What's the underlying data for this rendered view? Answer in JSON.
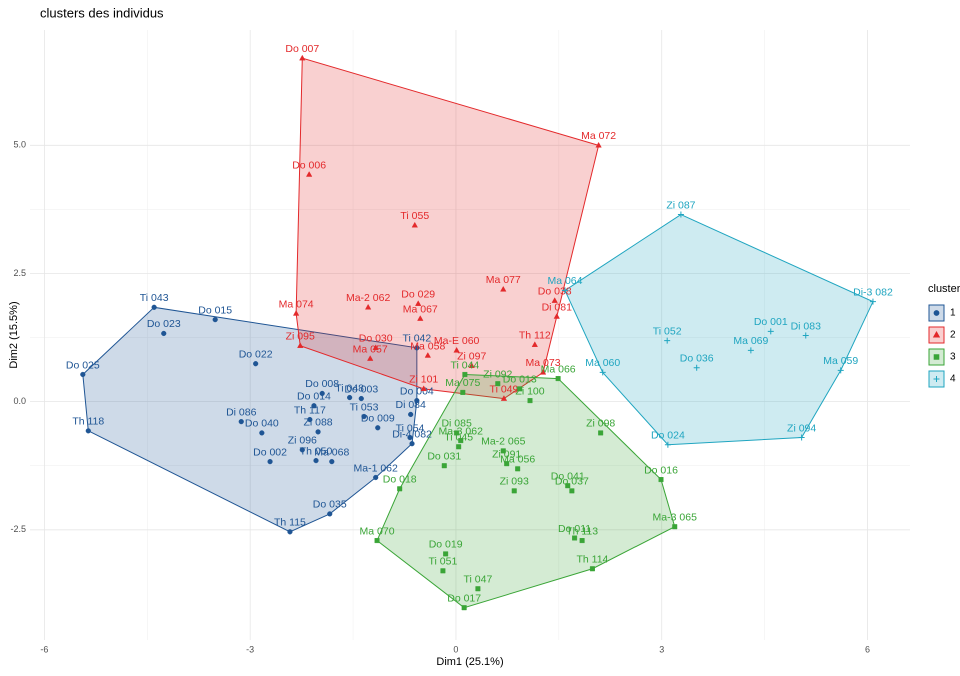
{
  "chart_data": {
    "type": "scatter",
    "title": "clusters des individus",
    "x_label": "Dim1 (25.1%)",
    "y_label": "Dim2 (15.5%)",
    "legend_title": "cluster",
    "xlim": [
      -6.21,
      6.62
    ],
    "ylim": [
      -4.65,
      7.25
    ],
    "xticks": [
      -6,
      -3,
      0,
      3,
      6
    ],
    "yticks": [
      -2.5,
      {
        "value": 0,
        "label": "0.0"
      },
      2.5,
      {
        "value": 5,
        "label": "5.0"
      }
    ],
    "grid": true,
    "legend": "right",
    "series": [
      {
        "name": "1",
        "color": "#1f5594",
        "marker": "circle",
        "labels": [
          "Ti 043",
          "Do 015",
          "Do 023",
          "Do 022",
          "Do 025",
          "Th 118",
          "Di 086",
          "Do 040",
          "Do 002",
          "Zi 096",
          "Th 050",
          "Th 117",
          "Zi 088",
          "Do 008",
          "Do 014",
          "Ti 048",
          "Do 003",
          "Ti 053",
          "Do 009",
          "Ma 068",
          "Di 084",
          "Di-4 082",
          "Ma-1 062",
          "Do 035",
          "Th 115",
          "Ti 042",
          "Do 004",
          "Ti 054"
        ],
        "x": [
          -4.4,
          -3.51,
          -4.26,
          -2.92,
          -5.44,
          -5.36,
          -3.13,
          -2.83,
          -2.71,
          -2.24,
          -2.04,
          -2.13,
          -2.01,
          -1.95,
          -2.07,
          -1.55,
          -1.38,
          -1.34,
          -1.14,
          -1.81,
          -0.66,
          -0.64,
          -1.17,
          -1.84,
          -2.42,
          -0.57,
          -0.57,
          -0.67
        ],
        "y": [
          1.84,
          1.6,
          1.33,
          0.74,
          0.53,
          -0.57,
          -0.39,
          -0.61,
          -1.17,
          -0.94,
          -1.15,
          -0.35,
          -0.59,
          0.16,
          -0.08,
          0.08,
          0.06,
          -0.29,
          -0.51,
          -1.17,
          -0.25,
          -0.82,
          -1.48,
          -2.19,
          -2.54,
          1.05,
          0.02,
          -0.7
        ]
      },
      {
        "name": "2",
        "color": "#e3292b",
        "marker": "triangle",
        "labels": [
          "Do 007",
          "Do 006",
          "Ma 072",
          "Ti 055",
          "Ma 077",
          "Do 029",
          "Ma 074",
          "Ma-2 062",
          "Ma 067",
          "Do 038",
          "Di 081",
          "Th 112",
          "Ma-E 060",
          "Zi 095",
          "Do 030",
          "Ma 057",
          "Zi 101",
          "Ma 058",
          "Zi 097",
          "Ma 073",
          "Ti 049"
        ],
        "x": [
          -2.24,
          -2.14,
          2.08,
          -0.6,
          0.69,
          -0.55,
          -2.33,
          -1.28,
          -0.52,
          1.44,
          1.47,
          1.15,
          0.01,
          -2.27,
          -1.17,
          -1.25,
          -0.47,
          -0.41,
          0.23,
          1.27,
          0.7
        ],
        "y": [
          6.7,
          4.43,
          5.0,
          3.44,
          2.19,
          1.91,
          1.72,
          1.84,
          1.62,
          1.97,
          1.66,
          1.11,
          1.0,
          1.09,
          1.05,
          0.84,
          0.25,
          0.9,
          0.7,
          0.57,
          0.06
        ]
      },
      {
        "name": "3",
        "color": "#3aa537",
        "marker": "square",
        "labels": [
          "Ti 044",
          "Zi 092",
          "Do 013",
          "Ma 066",
          "Ma 075",
          "Zi 100",
          "Zi 098",
          "Di 085",
          "Ma-3 062",
          "Ti 045",
          "Ma-2 065",
          "Zi 091",
          "Ma 056",
          "Do 041",
          "Do 037",
          "Do 031",
          "Zi 093",
          "Do 018",
          "Do 011",
          "Do 016",
          "Ma-3 065",
          "Th 113",
          "Th 114",
          "Ma 070",
          "Do 019",
          "Ti 051",
          "Ti 047",
          "Do 017"
        ],
        "x": [
          0.13,
          0.61,
          0.93,
          1.49,
          0.1,
          1.08,
          2.11,
          0.01,
          0.07,
          0.04,
          0.69,
          0.74,
          0.9,
          1.63,
          1.69,
          -0.17,
          0.85,
          -0.82,
          1.73,
          2.99,
          3.19,
          1.84,
          1.99,
          -1.15,
          -0.15,
          -0.19,
          0.32,
          0.12
        ],
        "y": [
          0.53,
          0.35,
          0.25,
          0.45,
          0.18,
          0.02,
          -0.61,
          -0.61,
          -0.76,
          -0.88,
          -0.96,
          -1.21,
          -1.31,
          -1.64,
          -1.74,
          -1.25,
          -1.74,
          -1.7,
          -2.66,
          -1.52,
          -2.44,
          -2.71,
          -3.26,
          -2.71,
          -2.97,
          -3.3,
          -3.65,
          -4.02
        ]
      },
      {
        "name": "4",
        "color": "#1fa5c0",
        "marker": "plus",
        "labels": [
          "Zi 087",
          "Di-3 082",
          "Ti 052",
          "Do 001",
          "Di 083",
          "Ma 069",
          "Ma 059",
          "Do 036",
          "Ma 060",
          "Ma 064",
          "Zi 094",
          "Do 024"
        ],
        "x": [
          3.28,
          6.08,
          3.08,
          4.59,
          5.1,
          4.3,
          5.61,
          3.51,
          2.14,
          1.59,
          5.04,
          3.09
        ],
        "y": [
          3.65,
          1.95,
          1.19,
          1.37,
          1.29,
          1.0,
          0.61,
          0.66,
          0.57,
          2.17,
          -0.7,
          -0.84
        ]
      }
    ]
  }
}
